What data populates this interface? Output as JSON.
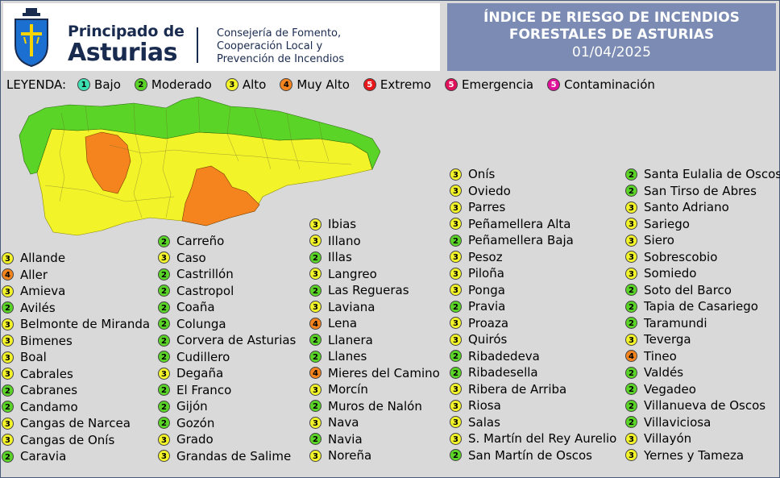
{
  "header": {
    "brand_line1": "Principado de",
    "brand_line2": "Asturias",
    "department": "Consejería de Fomento,\nCooperación Local y\nPrevención de Incendios",
    "title_line1": "ÍNDICE DE RIESGO DE INCENDIOS",
    "title_line2": "FORESTALES DE ASTURIAS",
    "date": "01/04/2025"
  },
  "legend": {
    "title": "LEYENDA:",
    "items": [
      {
        "n": "1",
        "label": "Bajo",
        "cls": "r1"
      },
      {
        "n": "2",
        "label": "Moderado",
        "cls": "r2"
      },
      {
        "n": "3",
        "label": "Alto",
        "cls": "r3"
      },
      {
        "n": "4",
        "label": "Muy Alto",
        "cls": "r4"
      },
      {
        "n": "5",
        "label": "Extremo",
        "cls": "r5"
      },
      {
        "n": "5",
        "label": "Emergencia",
        "cls": "r5e"
      },
      {
        "n": "5",
        "label": "Contaminación",
        "cls": "r5c"
      }
    ]
  },
  "colors": {
    "bajo": "#3de0b0",
    "moderado": "#5ad426",
    "alto": "#f3f32a",
    "muy_alto": "#f5841f",
    "extremo": "#e8171a",
    "emergencia": "#e0105a",
    "contaminacion": "#e0109a"
  },
  "columns": [
    [
      {
        "name": "Allande",
        "risk": 3
      },
      {
        "name": "Aller",
        "risk": 4
      },
      {
        "name": "Amieva",
        "risk": 3
      },
      {
        "name": "Avilés",
        "risk": 2
      },
      {
        "name": "Belmonte de Miranda",
        "risk": 3
      },
      {
        "name": "Bimenes",
        "risk": 3
      },
      {
        "name": "Boal",
        "risk": 3
      },
      {
        "name": "Cabrales",
        "risk": 3
      },
      {
        "name": "Cabranes",
        "risk": 2
      },
      {
        "name": "Candamo",
        "risk": 2
      },
      {
        "name": "Cangas de Narcea",
        "risk": 3
      },
      {
        "name": "Cangas de Onís",
        "risk": 3
      },
      {
        "name": "Caravia",
        "risk": 2
      }
    ],
    [
      {
        "name": "Carreño",
        "risk": 2
      },
      {
        "name": "Caso",
        "risk": 3
      },
      {
        "name": "Castrillón",
        "risk": 2
      },
      {
        "name": "Castropol",
        "risk": 2
      },
      {
        "name": "Coaña",
        "risk": 2
      },
      {
        "name": "Colunga",
        "risk": 2
      },
      {
        "name": "Corvera de Asturias",
        "risk": 2
      },
      {
        "name": "Cudillero",
        "risk": 2
      },
      {
        "name": "Degaña",
        "risk": 3
      },
      {
        "name": "El Franco",
        "risk": 2
      },
      {
        "name": "Gijón",
        "risk": 2
      },
      {
        "name": "Gozón",
        "risk": 2
      },
      {
        "name": "Grado",
        "risk": 3
      },
      {
        "name": "Grandas de Salime",
        "risk": 3
      }
    ],
    [
      {
        "name": "Ibias",
        "risk": 3
      },
      {
        "name": "Illano",
        "risk": 3
      },
      {
        "name": "Illas",
        "risk": 2
      },
      {
        "name": "Langreo",
        "risk": 3
      },
      {
        "name": "Las Regueras",
        "risk": 2
      },
      {
        "name": "Laviana",
        "risk": 3
      },
      {
        "name": "Lena",
        "risk": 4
      },
      {
        "name": "Llanera",
        "risk": 2
      },
      {
        "name": "Llanes",
        "risk": 2
      },
      {
        "name": "Mieres del Camino",
        "risk": 4
      },
      {
        "name": "Morcín",
        "risk": 3
      },
      {
        "name": "Muros de Nalón",
        "risk": 2
      },
      {
        "name": "Nava",
        "risk": 3
      },
      {
        "name": "Navia",
        "risk": 2
      },
      {
        "name": "Noreña",
        "risk": 3
      }
    ],
    [
      {
        "name": "Onís",
        "risk": 3
      },
      {
        "name": "Oviedo",
        "risk": 3
      },
      {
        "name": "Parres",
        "risk": 3
      },
      {
        "name": "Peñamellera Alta",
        "risk": 3
      },
      {
        "name": "Peñamellera Baja",
        "risk": 2
      },
      {
        "name": "Pesoz",
        "risk": 3
      },
      {
        "name": "Piloña",
        "risk": 3
      },
      {
        "name": "Ponga",
        "risk": 3
      },
      {
        "name": "Pravia",
        "risk": 2
      },
      {
        "name": "Proaza",
        "risk": 3
      },
      {
        "name": "Quirós",
        "risk": 3
      },
      {
        "name": "Ribadedeva",
        "risk": 2
      },
      {
        "name": "Ribadesella",
        "risk": 2
      },
      {
        "name": "Ribera de Arriba",
        "risk": 3
      },
      {
        "name": "Riosa",
        "risk": 3
      },
      {
        "name": "Salas",
        "risk": 3
      },
      {
        "name": "S. Martín del Rey Aurelio",
        "risk": 3
      },
      {
        "name": "San Martín de Oscos",
        "risk": 2
      }
    ],
    [
      {
        "name": "Santa Eulalia de Oscos",
        "risk": 2
      },
      {
        "name": "San Tirso de Abres",
        "risk": 2
      },
      {
        "name": "Santo Adriano",
        "risk": 3
      },
      {
        "name": "Sariego",
        "risk": 3
      },
      {
        "name": "Siero",
        "risk": 3
      },
      {
        "name": "Sobrescobio",
        "risk": 3
      },
      {
        "name": "Somiedo",
        "risk": 3
      },
      {
        "name": "Soto del Barco",
        "risk": 2
      },
      {
        "name": "Tapia de Casariego",
        "risk": 2
      },
      {
        "name": "Taramundi",
        "risk": 2
      },
      {
        "name": "Teverga",
        "risk": 3
      },
      {
        "name": "Tineo",
        "risk": 4
      },
      {
        "name": "Valdés",
        "risk": 2
      },
      {
        "name": "Vegadeo",
        "risk": 2
      },
      {
        "name": "Villanueva de Oscos",
        "risk": 2
      },
      {
        "name": "Villaviciosa",
        "risk": 2
      },
      {
        "name": "Villayón",
        "risk": 3
      },
      {
        "name": "Yernes y Tameza",
        "risk": 3
      }
    ]
  ]
}
